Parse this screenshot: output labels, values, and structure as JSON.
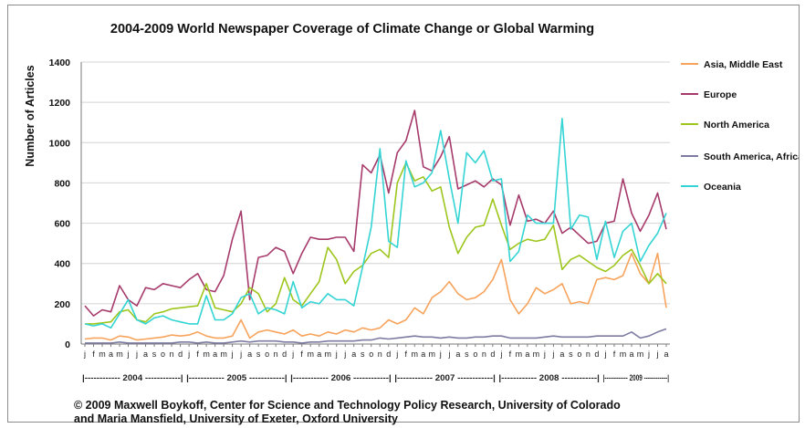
{
  "chart_data": {
    "type": "line",
    "title": "2004-2009 World Newspaper Coverage of Climate Change or Global Warming",
    "ylabel": "Number of Articles",
    "xlabel": "",
    "ylim": [
      0,
      1400
    ],
    "yticks": [
      0,
      200,
      400,
      600,
      800,
      1000,
      1200,
      1400
    ],
    "grid": "horizontal",
    "legend_position": "right",
    "month_labels": [
      "j",
      "f",
      "m",
      "a",
      "m",
      "j",
      "j",
      "a",
      "s",
      "o",
      "n",
      "d",
      "j",
      "f",
      "m",
      "a",
      "m",
      "j",
      "j",
      "a",
      "s",
      "o",
      "n",
      "d",
      "j",
      "f",
      "m",
      "a",
      "m",
      "j",
      "j",
      "a",
      "s",
      "o",
      "n",
      "d",
      "j",
      "f",
      "m",
      "a",
      "m",
      "j",
      "j",
      "a",
      "s",
      "o",
      "n",
      "d",
      "j",
      "f",
      "m",
      "a",
      "m",
      "j",
      "j",
      "a",
      "s",
      "o",
      "n",
      "d",
      "j",
      "f",
      "m",
      "a",
      "m",
      "j",
      "j",
      "a"
    ],
    "year_labels": [
      {
        "label": "|------------ 2004 ------------|",
        "start": 0,
        "end": 11
      },
      {
        "label": "|------------ 2005 ------------|",
        "start": 12,
        "end": 23
      },
      {
        "label": "|------------ 2006 ------------|",
        "start": 24,
        "end": 35
      },
      {
        "label": "|------------ 2007 ------------|",
        "start": 36,
        "end": 47
      },
      {
        "label": "|------------ 2008 ------------|",
        "start": 48,
        "end": 59
      },
      {
        "label": "|------------ 2009 ------------|",
        "start": 60,
        "end": 67
      }
    ],
    "series": [
      {
        "name": "Asia, Middle East",
        "color": "#f7a35c",
        "values": [
          25,
          30,
          30,
          20,
          40,
          35,
          20,
          25,
          30,
          35,
          45,
          40,
          45,
          60,
          40,
          30,
          30,
          40,
          120,
          30,
          60,
          70,
          60,
          50,
          70,
          40,
          50,
          40,
          60,
          50,
          70,
          60,
          80,
          70,
          80,
          120,
          100,
          120,
          180,
          150,
          230,
          260,
          310,
          250,
          220,
          230,
          260,
          320,
          420,
          220,
          150,
          200,
          280,
          250,
          270,
          300,
          200,
          210,
          200,
          320,
          330,
          320,
          340,
          450,
          350,
          300,
          450,
          180
        ]
      },
      {
        "name": "Europe",
        "color": "#a63a6b",
        "values": [
          190,
          140,
          170,
          160,
          290,
          220,
          190,
          280,
          270,
          300,
          290,
          280,
          320,
          350,
          270,
          260,
          340,
          520,
          660,
          220,
          430,
          440,
          480,
          460,
          350,
          450,
          530,
          520,
          520,
          530,
          530,
          460,
          890,
          850,
          940,
          750,
          950,
          1010,
          1160,
          880,
          860,
          930,
          1030,
          770,
          790,
          810,
          780,
          820,
          790,
          590,
          740,
          610,
          620,
          600,
          660,
          550,
          580,
          540,
          500,
          510,
          600,
          610,
          820,
          650,
          560,
          640,
          750,
          570
        ]
      },
      {
        "name": "North America",
        "color": "#9dc61d",
        "values": [
          100,
          100,
          105,
          110,
          160,
          170,
          120,
          110,
          150,
          160,
          175,
          180,
          185,
          190,
          300,
          180,
          170,
          160,
          200,
          280,
          250,
          160,
          200,
          330,
          220,
          190,
          250,
          310,
          480,
          420,
          300,
          360,
          390,
          450,
          470,
          430,
          800,
          900,
          810,
          830,
          760,
          780,
          580,
          450,
          530,
          580,
          590,
          720,
          590,
          470,
          500,
          520,
          510,
          520,
          590,
          370,
          420,
          440,
          410,
          380,
          360,
          390,
          440,
          470,
          390,
          300,
          350,
          300
        ]
      },
      {
        "name": "South America, Africa",
        "color": "#7d7ba2",
        "values": [
          5,
          5,
          5,
          5,
          10,
          5,
          5,
          5,
          5,
          5,
          5,
          10,
          10,
          5,
          10,
          5,
          5,
          10,
          15,
          10,
          15,
          15,
          15,
          10,
          10,
          5,
          10,
          10,
          15,
          15,
          15,
          15,
          20,
          20,
          30,
          25,
          30,
          35,
          40,
          35,
          35,
          30,
          35,
          30,
          30,
          35,
          35,
          40,
          40,
          30,
          30,
          30,
          30,
          35,
          40,
          35,
          35,
          35,
          35,
          40,
          40,
          40,
          40,
          60,
          30,
          40,
          60,
          75
        ]
      },
      {
        "name": "Oceania",
        "color": "#34d4d4",
        "values": [
          100,
          90,
          100,
          80,
          150,
          220,
          120,
          100,
          130,
          140,
          120,
          110,
          100,
          100,
          240,
          120,
          120,
          150,
          230,
          250,
          150,
          180,
          170,
          150,
          310,
          180,
          210,
          200,
          250,
          220,
          220,
          190,
          380,
          580,
          970,
          510,
          480,
          910,
          780,
          800,
          850,
          1060,
          820,
          600,
          950,
          900,
          960,
          810,
          820,
          410,
          460,
          640,
          600,
          600,
          600,
          1120,
          570,
          640,
          630,
          420,
          610,
          430,
          560,
          600,
          410,
          490,
          550,
          650
        ]
      }
    ]
  },
  "credit": {
    "line1": "© 2009 Maxwell Boykoff, Center for Science and Technology Policy Research, University of Colorado",
    "line2": "and Maria Mansfield, University of Exeter, Oxford University"
  }
}
